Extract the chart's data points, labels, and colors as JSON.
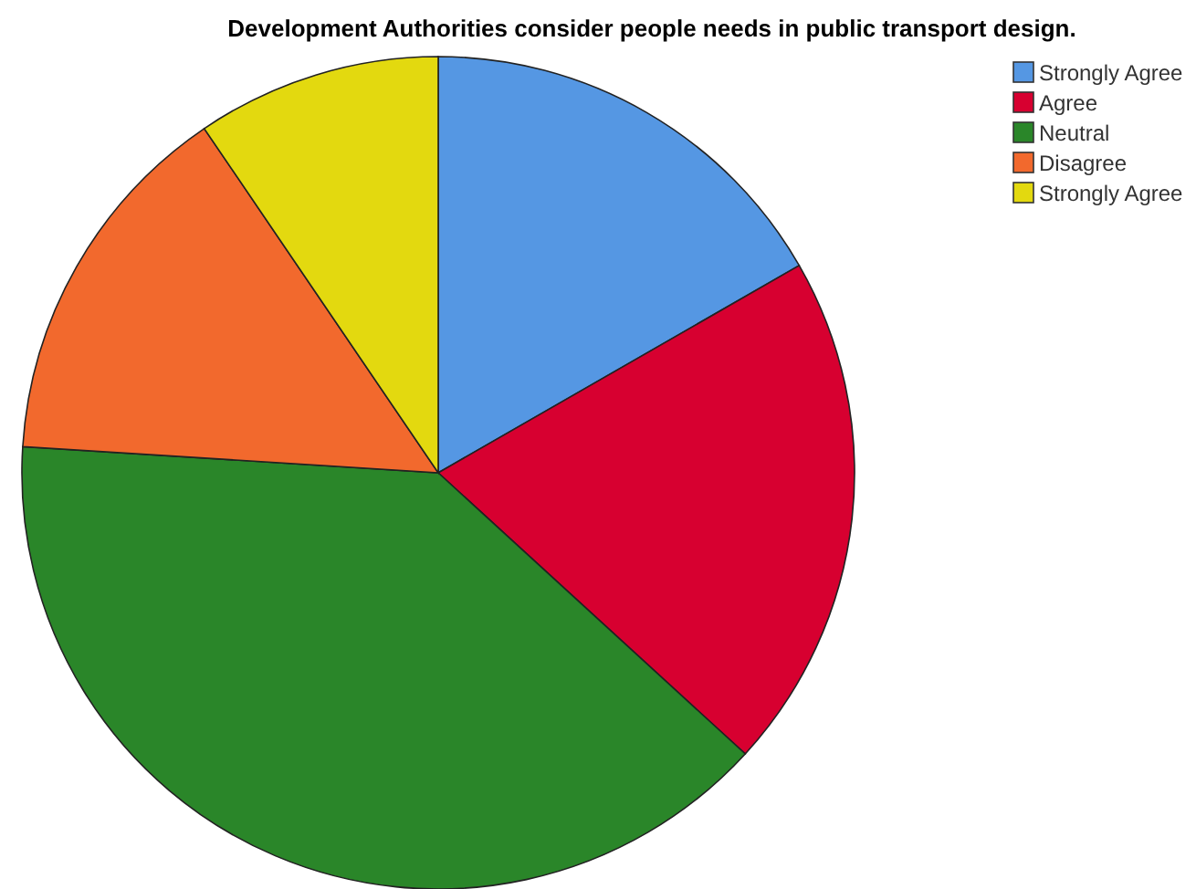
{
  "chart_data": {
    "type": "pie",
    "title": "Development Authorities consider people needs in public transport design.",
    "categories": [
      "Strongly Agree",
      "Agree",
      "Neutral",
      "Disagree",
      "Strongly Agree"
    ],
    "values": [
      16.7,
      20.1,
      39.2,
      14.5,
      9.5
    ],
    "colors": [
      "#5597e3",
      "#d70030",
      "#2a8629",
      "#f2692d",
      "#e3d90f"
    ],
    "legend": "top right"
  }
}
